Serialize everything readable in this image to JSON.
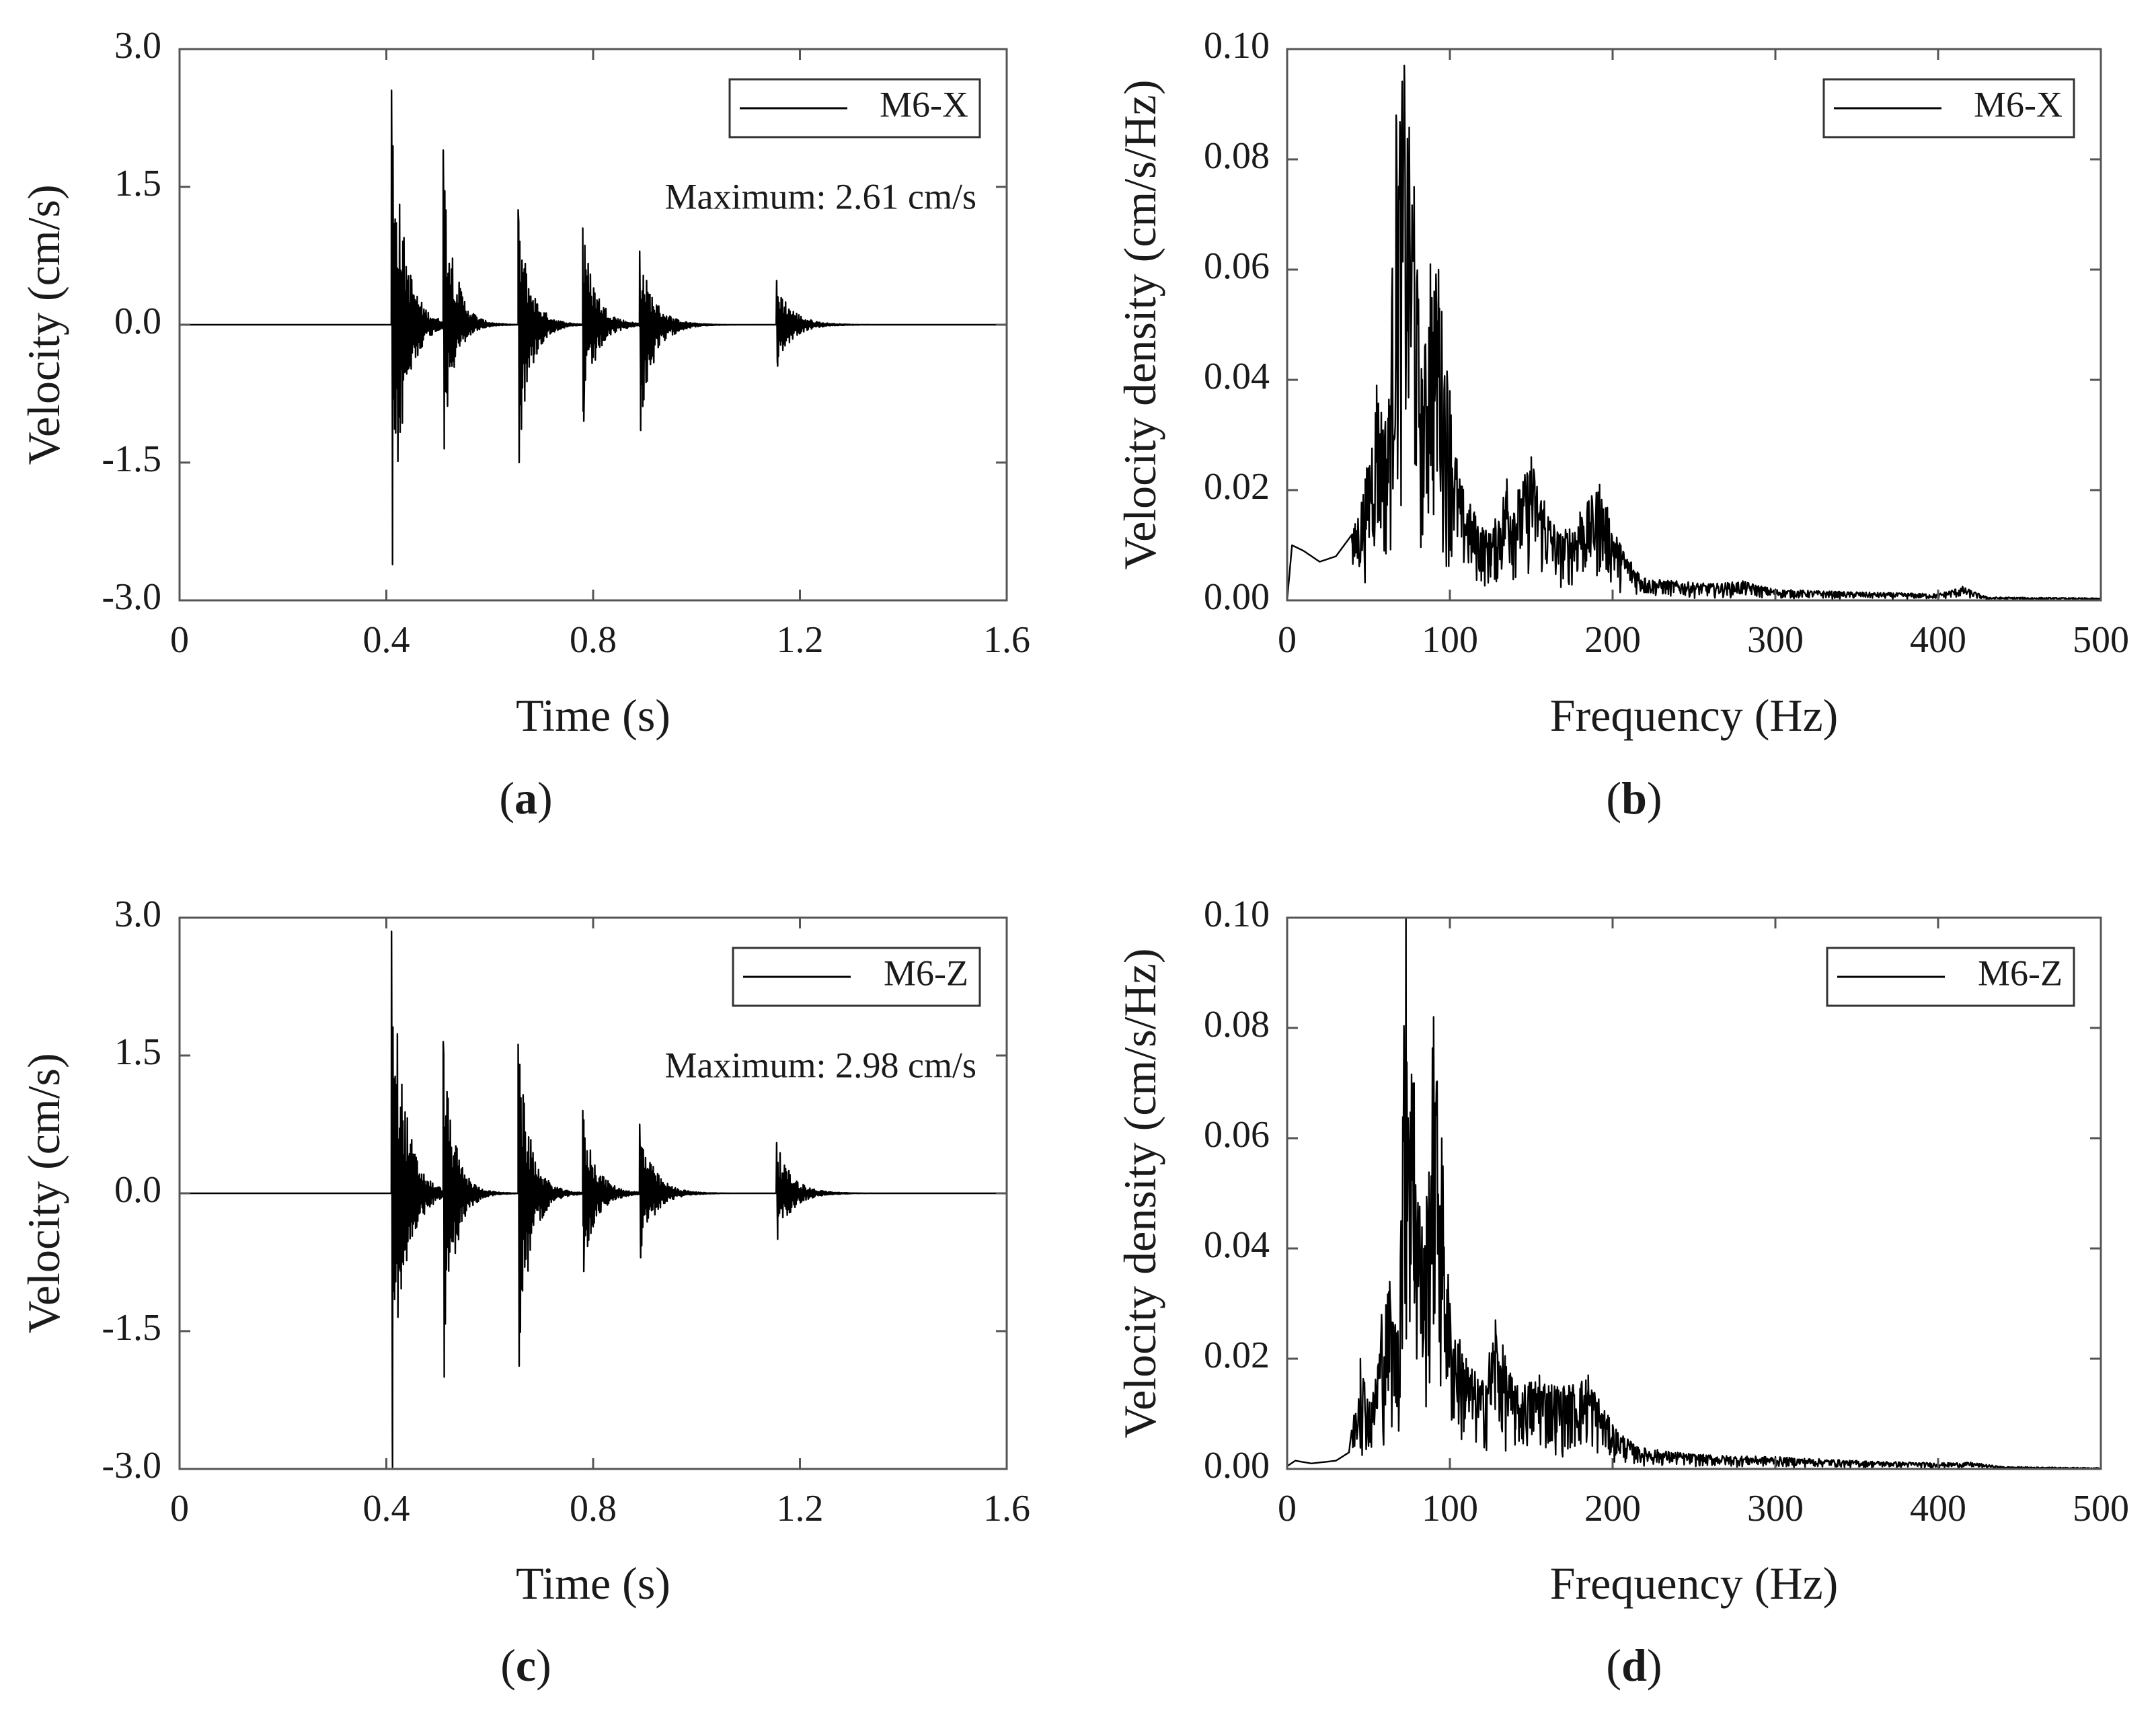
{
  "chart_data": [
    {
      "id": "a",
      "type": "line",
      "panel_label": "a",
      "xlabel": "Time (s)",
      "ylabel": "Velocity (cm/s)",
      "xlim": [
        0,
        1.6
      ],
      "ylim": [
        -3.0,
        3.0
      ],
      "xticks": [
        0,
        0.4,
        0.8,
        1.2,
        1.6
      ],
      "xtick_labels": [
        "0",
        "0.4",
        "0.8",
        "1.2",
        "1.6"
      ],
      "yticks": [
        -3.0,
        -1.5,
        0.0,
        1.5,
        3.0
      ],
      "ytick_labels": [
        "-3.0",
        "-1.5",
        "0.0",
        "1.5",
        "3.0"
      ],
      "legend": "M6-X",
      "annotation": "Maximum: 2.61 cm/s",
      "series": [
        {
          "name": "M6-X",
          "signal": "velocity-time",
          "bursts": [
            {
              "t": 0.41,
              "pos": 2.55,
              "neg": 2.61,
              "decay": 0.025
            },
            {
              "t": 0.51,
              "pos": 1.9,
              "neg": 1.35,
              "decay": 0.022
            },
            {
              "t": 0.655,
              "pos": 1.25,
              "neg": 1.5,
              "decay": 0.024
            },
            {
              "t": 0.78,
              "pos": 1.05,
              "neg": 1.05,
              "decay": 0.026
            },
            {
              "t": 0.89,
              "pos": 0.8,
              "neg": 1.15,
              "decay": 0.028
            },
            {
              "t": 1.155,
              "pos": 0.48,
              "neg": 0.45,
              "decay": 0.03
            }
          ]
        }
      ]
    },
    {
      "id": "b",
      "type": "line",
      "panel_label": "b",
      "xlabel": "Frequency (Hz)",
      "ylabel": "Velocity density (cm/s/Hz)",
      "xlim": [
        0,
        500
      ],
      "ylim": [
        0,
        0.1
      ],
      "xticks": [
        0,
        100,
        200,
        300,
        400,
        500
      ],
      "xtick_labels": [
        "0",
        "100",
        "200",
        "300",
        "400",
        "500"
      ],
      "yticks": [
        0.0,
        0.02,
        0.04,
        0.06,
        0.08,
        0.1
      ],
      "ytick_labels": [
        "0.00",
        "0.02",
        "0.04",
        "0.06",
        "0.08",
        "0.10"
      ],
      "legend": "M6-X",
      "series": [
        {
          "name": "M6-X",
          "signal": "spectrum",
          "envelope": [
            [
              0,
              0
            ],
            [
              3,
              0.01
            ],
            [
              10,
              0.009
            ],
            [
              20,
              0.007
            ],
            [
              30,
              0.008
            ],
            [
              40,
              0.012
            ],
            [
              48,
              0.022
            ],
            [
              55,
              0.039
            ],
            [
              62,
              0.033
            ],
            [
              67,
              0.088
            ],
            [
              72,
              0.097
            ],
            [
              78,
              0.075
            ],
            [
              83,
              0.04
            ],
            [
              88,
              0.061
            ],
            [
              93,
              0.06
            ],
            [
              100,
              0.038
            ],
            [
              106,
              0.022
            ],
            [
              115,
              0.016
            ],
            [
              125,
              0.012
            ],
            [
              135,
              0.022
            ],
            [
              142,
              0.02
            ],
            [
              150,
              0.026
            ],
            [
              158,
              0.018
            ],
            [
              168,
              0.012
            ],
            [
              180,
              0.016
            ],
            [
              192,
              0.021
            ],
            [
              205,
              0.01
            ],
            [
              220,
              0.004
            ],
            [
              260,
              0.003
            ],
            [
              280,
              0.0035
            ],
            [
              300,
              0.002
            ],
            [
              350,
              0.0015
            ],
            [
              400,
              0.0012
            ],
            [
              415,
              0.0025
            ],
            [
              430,
              0.0006
            ],
            [
              500,
              0.0004
            ]
          ]
        }
      ]
    },
    {
      "id": "c",
      "type": "line",
      "panel_label": "c",
      "xlabel": "Time (s)",
      "ylabel": "Velocity (cm/s)",
      "xlim": [
        0,
        1.6
      ],
      "ylim": [
        -3.0,
        3.0
      ],
      "xticks": [
        0,
        0.4,
        0.8,
        1.2,
        1.6
      ],
      "xtick_labels": [
        "0",
        "0.4",
        "0.8",
        "1.2",
        "1.6"
      ],
      "yticks": [
        -3.0,
        -1.5,
        0.0,
        1.5,
        3.0
      ],
      "ytick_labels": [
        "-3.0",
        "-1.5",
        "0.0",
        "1.5",
        "3.0"
      ],
      "legend": "M6-Z",
      "annotation": "Maximum: 2.98 cm/s",
      "series": [
        {
          "name": "M6-Z",
          "signal": "velocity-time",
          "bursts": [
            {
              "t": 0.41,
              "pos": 2.85,
              "neg": 2.98,
              "decay": 0.025
            },
            {
              "t": 0.51,
              "pos": 1.65,
              "neg": 2.0,
              "decay": 0.022
            },
            {
              "t": 0.655,
              "pos": 1.62,
              "neg": 1.88,
              "decay": 0.024
            },
            {
              "t": 0.78,
              "pos": 0.9,
              "neg": 0.85,
              "decay": 0.026
            },
            {
              "t": 0.89,
              "pos": 0.75,
              "neg": 0.7,
              "decay": 0.028
            },
            {
              "t": 1.155,
              "pos": 0.55,
              "neg": 0.5,
              "decay": 0.03
            }
          ]
        }
      ]
    },
    {
      "id": "d",
      "type": "line",
      "panel_label": "d",
      "xlabel": "Frequency (Hz)",
      "ylabel": "Velocity density (cm/s/Hz)",
      "xlim": [
        0,
        500
      ],
      "ylim": [
        0,
        0.1
      ],
      "xticks": [
        0,
        100,
        200,
        300,
        400,
        500
      ],
      "xtick_labels": [
        "0",
        "100",
        "200",
        "300",
        "400",
        "500"
      ],
      "yticks": [
        0.0,
        0.02,
        0.04,
        0.06,
        0.08,
        0.1
      ],
      "ytick_labels": [
        "0.00",
        "0.02",
        "0.04",
        "0.06",
        "0.08",
        "0.10"
      ],
      "legend": "M6-Z",
      "series": [
        {
          "name": "M6-Z",
          "signal": "spectrum",
          "envelope": [
            [
              0,
              0.0005
            ],
            [
              5,
              0.0015
            ],
            [
              15,
              0.001
            ],
            [
              30,
              0.0015
            ],
            [
              38,
              0.003
            ],
            [
              45,
              0.02
            ],
            [
              52,
              0.012
            ],
            [
              58,
              0.028
            ],
            [
              63,
              0.034
            ],
            [
              68,
              0.025
            ],
            [
              73,
              0.1
            ],
            [
              78,
              0.07
            ],
            [
              84,
              0.04
            ],
            [
              90,
              0.082
            ],
            [
              95,
              0.06
            ],
            [
              100,
              0.03
            ],
            [
              110,
              0.02
            ],
            [
              120,
              0.016
            ],
            [
              128,
              0.027
            ],
            [
              140,
              0.015
            ],
            [
              155,
              0.017
            ],
            [
              170,
              0.015
            ],
            [
              185,
              0.017
            ],
            [
              200,
              0.008
            ],
            [
              215,
              0.004
            ],
            [
              240,
              0.003
            ],
            [
              260,
              0.0025
            ],
            [
              300,
              0.0022
            ],
            [
              350,
              0.0015
            ],
            [
              400,
              0.0011
            ],
            [
              420,
              0.0012
            ],
            [
              440,
              0.0004
            ],
            [
              500,
              0.0002
            ]
          ]
        }
      ]
    }
  ]
}
